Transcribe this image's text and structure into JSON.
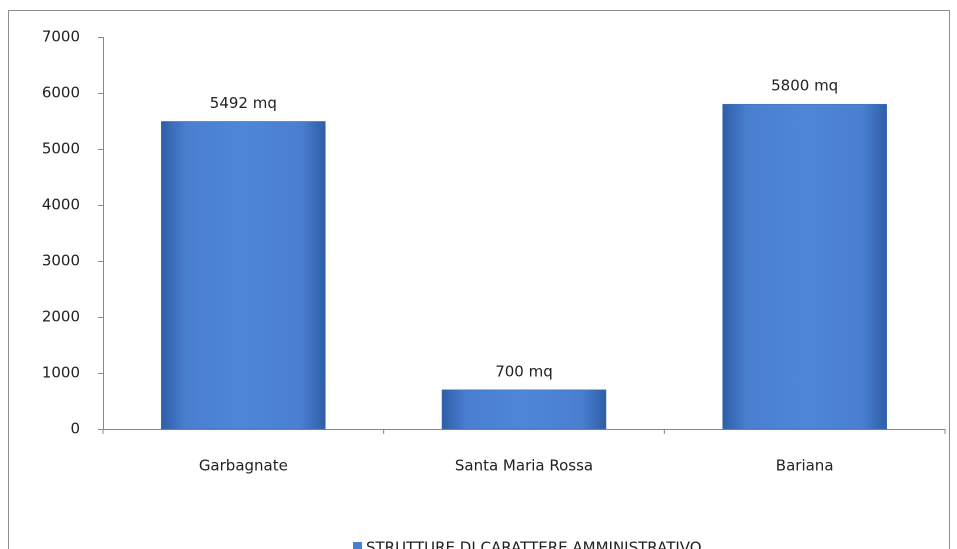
{
  "chart_data": {
    "type": "bar",
    "categories": [
      "Garbagnate",
      "Santa Maria Rossa",
      "Bariana"
    ],
    "series": [
      {
        "name": "STRUTTURE DI CARATTERE AMMINISTRATIVO",
        "color": "#4a7fd0",
        "values": [
          5492,
          700,
          5800
        ],
        "value_labels": [
          "5492 mq",
          "700 mq",
          "5800 mq"
        ]
      }
    ],
    "ylim": [
      0,
      7000
    ],
    "yticks": [
      0,
      1000,
      2000,
      3000,
      4000,
      5000,
      6000,
      7000
    ],
    "grid": false,
    "legend": "bottom"
  }
}
